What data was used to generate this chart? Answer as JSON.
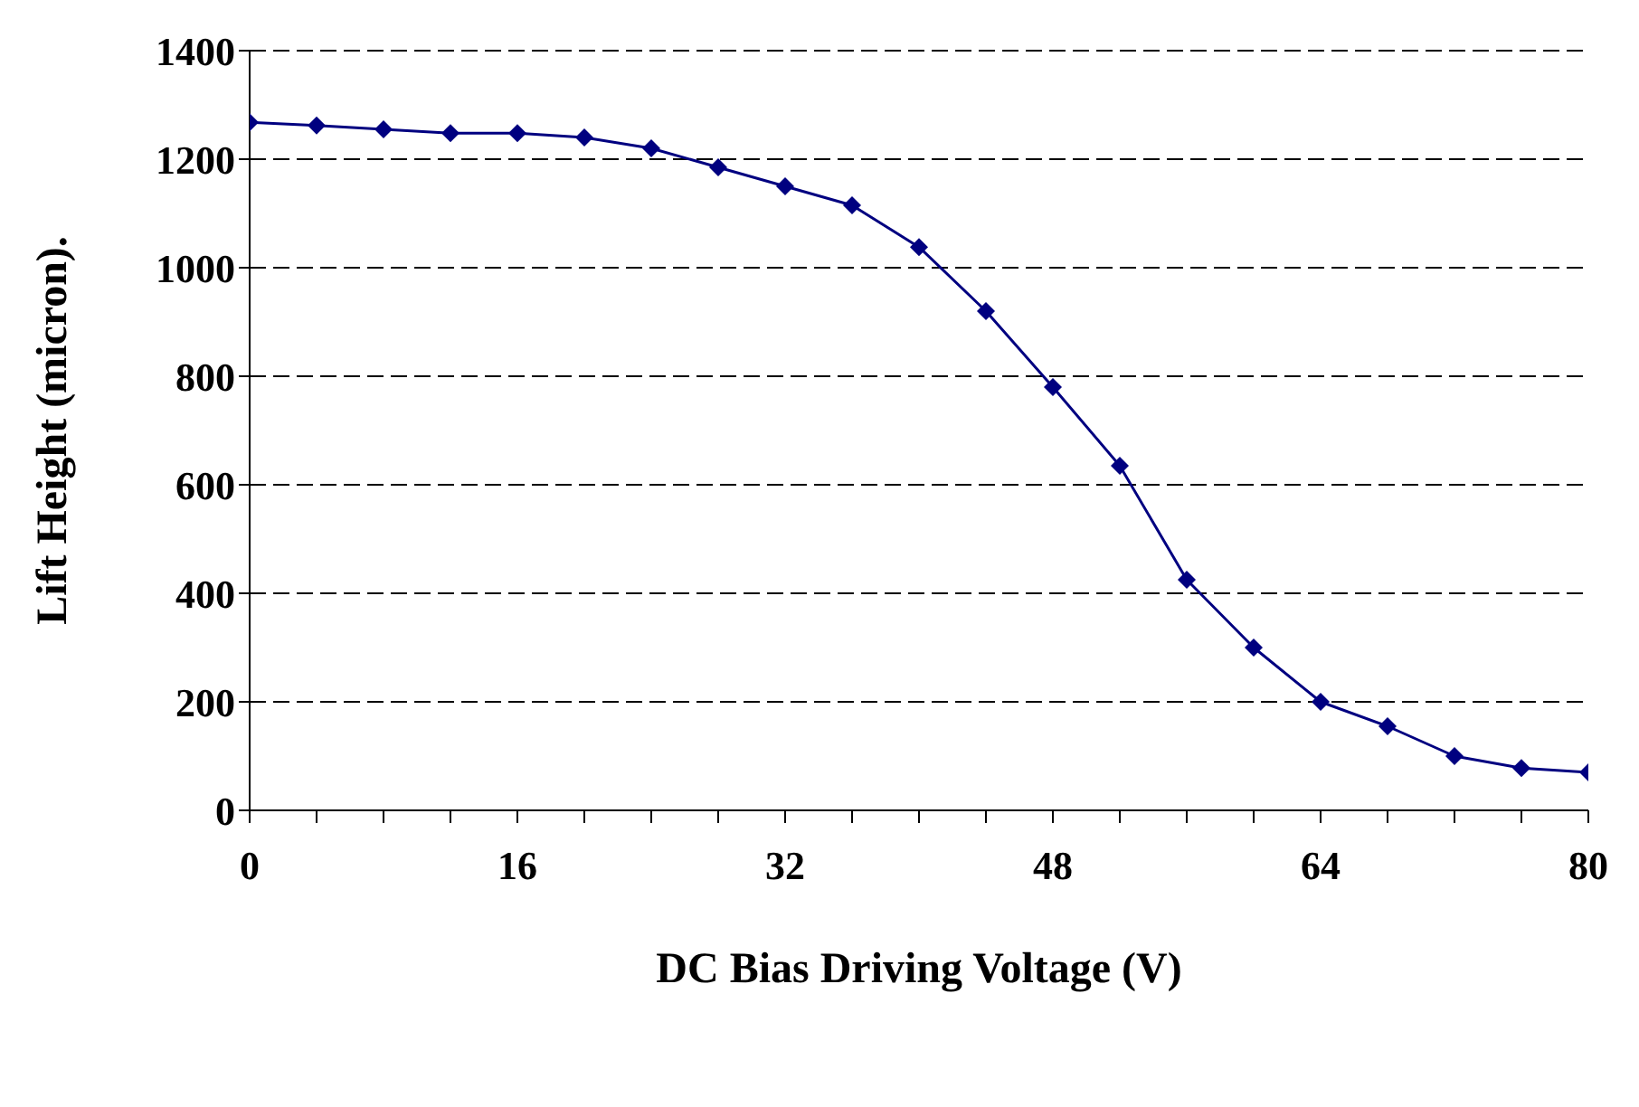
{
  "chart_data": {
    "type": "line",
    "xlabel": "DC Bias Driving Voltage (V)",
    "ylabel": "Lift Height (micron).",
    "x": [
      0,
      4,
      8,
      12,
      16,
      20,
      24,
      28,
      32,
      36,
      40,
      44,
      48,
      52,
      56,
      60,
      64,
      68,
      72,
      76,
      80
    ],
    "series": [
      {
        "color": "#000080",
        "values": [
          1268,
          1262,
          1255,
          1248,
          1248,
          1240,
          1220,
          1185,
          1150,
          1115,
          1038,
          920,
          780,
          635,
          425,
          300,
          200,
          155,
          100,
          78,
          70
        ]
      }
    ],
    "xlim": [
      0,
      80
    ],
    "xticks": [
      0,
      {
        "value": 4,
        "label": null
      },
      {
        "value": 8,
        "label": null
      },
      {
        "value": 12,
        "label": null
      },
      16,
      {
        "value": 20,
        "label": null
      },
      {
        "value": 24,
        "label": null
      },
      {
        "value": 28,
        "label": null
      },
      32,
      {
        "value": 36,
        "label": null
      },
      {
        "value": 40,
        "label": null
      },
      {
        "value": 44,
        "label": null
      },
      48,
      {
        "value": 52,
        "label": null
      },
      {
        "value": 56,
        "label": null
      },
      {
        "value": 60,
        "label": null
      },
      64,
      {
        "value": 68,
        "label": null
      },
      {
        "value": 72,
        "label": null
      },
      {
        "value": 76,
        "label": null
      },
      80
    ],
    "ylim": [
      0,
      1400
    ],
    "yticks": [
      0,
      200,
      400,
      600,
      800,
      1000,
      1200,
      1400
    ],
    "grid": "y",
    "legend": false,
    "marker": "diamond",
    "line_style": "solid"
  }
}
